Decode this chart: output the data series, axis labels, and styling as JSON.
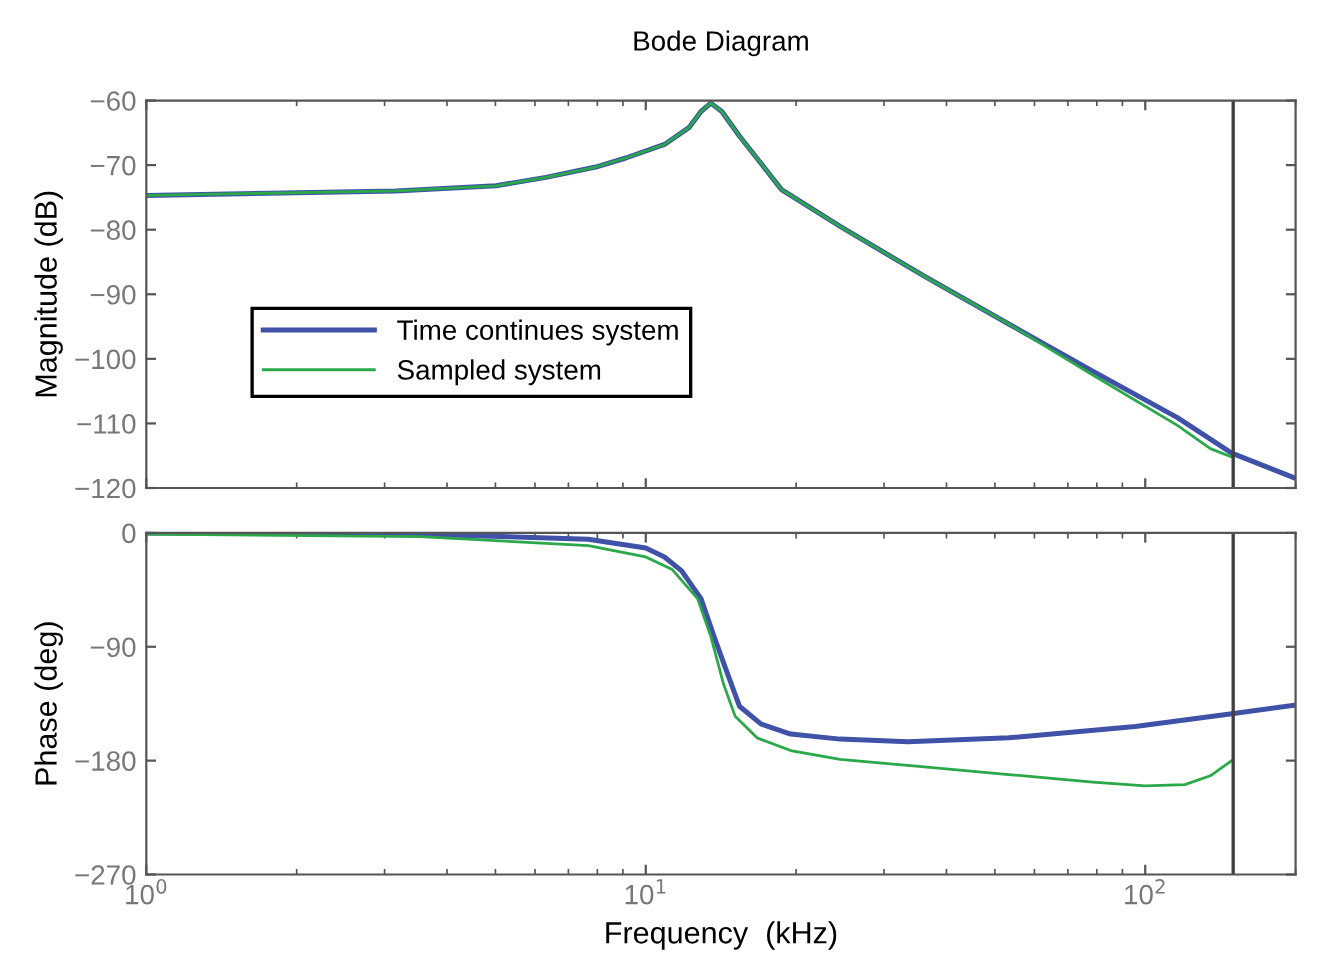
{
  "chart_data": [
    {
      "type": "line",
      "title": "Bode Diagram",
      "ylabel": "Magnitude (dB)",
      "log": "x",
      "xlim": [
        1,
        200
      ],
      "ylim": [
        -120,
        -60
      ],
      "yticks": [
        {
          "value": -120,
          "label": "−120"
        },
        {
          "value": -110,
          "label": "−110"
        },
        {
          "value": -100,
          "label": "−100"
        },
        {
          "value": -90,
          "label": "−90"
        },
        {
          "value": -80,
          "label": "−80"
        },
        {
          "value": -70,
          "label": "−70"
        },
        {
          "value": -60,
          "label": "−60"
        }
      ],
      "xticks": [
        1,
        10,
        100
      ],
      "tick_labels": "y",
      "grid": false,
      "legend": "center left",
      "ref_lines": [
        {
          "axis": "x",
          "value": 150,
          "color": "#404040"
        }
      ],
      "series": [
        {
          "name": "Time continues system",
          "color": "#3f52a8",
          "x": [
            1,
            3.16,
            5.01,
            6.31,
            7.94,
            9.12,
            10.9,
            12.2,
            12.9,
            13.5,
            14.2,
            15.4,
            18.7,
            24.5,
            36.1,
            53.3,
            78.5,
            116,
            149,
            200
          ],
          "values": [
            -74.7,
            -74.0,
            -73.2,
            -71.9,
            -70.3,
            -68.9,
            -66.8,
            -64.2,
            -61.7,
            -60.4,
            -61.7,
            -65.5,
            -73.8,
            -79.5,
            -87.2,
            -94.6,
            -101.9,
            -109.1,
            -114.6,
            -118.5
          ]
        },
        {
          "name": "Sampled system",
          "color": "#2aa84a",
          "x": [
            1,
            3.16,
            5.01,
            6.31,
            7.94,
            9.12,
            10.9,
            12.2,
            12.9,
            13.5,
            14.2,
            15.4,
            18.7,
            24.5,
            36.1,
            53.3,
            78.5,
            116,
            135,
            149
          ],
          "values": [
            -74.7,
            -74.0,
            -73.2,
            -71.9,
            -70.3,
            -68.9,
            -66.8,
            -64.2,
            -61.7,
            -60.4,
            -61.7,
            -65.5,
            -73.8,
            -79.5,
            -87.2,
            -94.6,
            -102.5,
            -110.3,
            -113.9,
            -115.2
          ]
        }
      ]
    },
    {
      "type": "line",
      "xlabel": "Frequency  (kHz)",
      "ylabel": "Phase (deg)",
      "log": "x",
      "xlim": [
        1,
        200
      ],
      "ylim": [
        -270,
        0
      ],
      "yticks": [
        {
          "value": -270,
          "label": "−270"
        },
        {
          "value": -180,
          "label": "−180"
        },
        {
          "value": -90,
          "label": "−90"
        },
        0
      ],
      "xticks": [
        {
          "value": 1,
          "label": "10$^{0}$"
        },
        {
          "value": 10,
          "label": "10$^{1}$"
        },
        {
          "value": 100,
          "label": "10$^{2}$"
        }
      ],
      "grid": false,
      "ref_lines": [
        {
          "axis": "x",
          "value": 150,
          "color": "#404040"
        }
      ],
      "series": [
        {
          "color": "#3f52a8",
          "x": [
            1,
            3.53,
            7.67,
            10,
            10.9,
            11.8,
            12.9,
            13.7,
            14.6,
            15.4,
            17.0,
            19.5,
            24.5,
            33.5,
            53.3,
            95.5,
            149,
            200
          ],
          "values": [
            0,
            -1,
            -5,
            -12,
            -19,
            -30,
            -52,
            -82,
            -112,
            -137,
            -151,
            -159,
            -163,
            -165,
            -162,
            -153,
            -143,
            -136
          ]
        },
        {
          "color": "#2aa84a",
          "x": [
            1,
            3.53,
            7.67,
            10,
            11.3,
            12.7,
            13.5,
            14.3,
            15.1,
            16.7,
            19.5,
            24.5,
            36.1,
            53.3,
            78.5,
            100,
            120,
            135,
            149
          ],
          "values": [
            -1,
            -3,
            -10,
            -19,
            -29,
            -52,
            -82,
            -119,
            -145,
            -162,
            -172,
            -179,
            -185,
            -191,
            -197,
            -200,
            -199,
            -192,
            -180
          ]
        }
      ]
    }
  ]
}
